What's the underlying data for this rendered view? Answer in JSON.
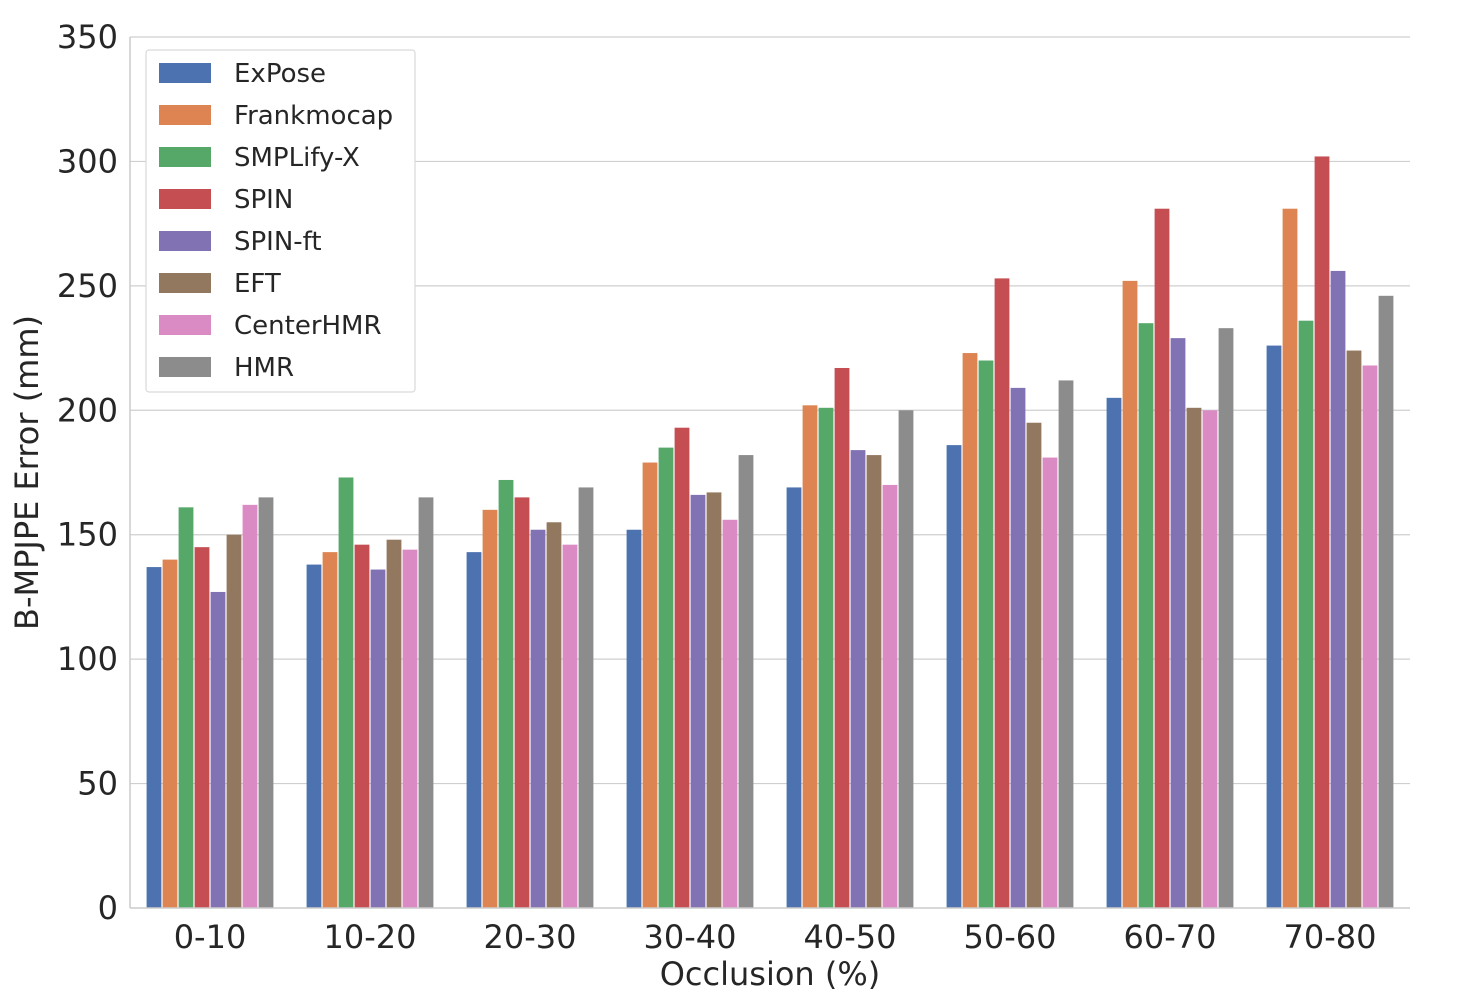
{
  "chart_data": {
    "type": "bar",
    "title": "",
    "xlabel": "Occlusion (%)",
    "ylabel": "B-MPJPE Error (mm)",
    "ylim": [
      0,
      350
    ],
    "yticks": [
      0,
      50,
      100,
      150,
      200,
      250,
      300,
      350
    ],
    "grid": true,
    "legend_position": "top-left",
    "categories": [
      "0-10",
      "10-20",
      "20-30",
      "30-40",
      "40-50",
      "50-60",
      "60-70",
      "70-80"
    ],
    "series": [
      {
        "name": "ExPose",
        "color": "#4c72b0",
        "values": [
          137,
          138,
          143,
          152,
          169,
          186,
          205,
          226
        ]
      },
      {
        "name": "Frankmocap",
        "color": "#dd8452",
        "values": [
          140,
          143,
          160,
          179,
          202,
          223,
          252,
          281
        ]
      },
      {
        "name": "SMPLify-X",
        "color": "#55a868",
        "values": [
          161,
          173,
          172,
          185,
          201,
          220,
          235,
          236
        ]
      },
      {
        "name": "SPIN",
        "color": "#c44e52",
        "values": [
          145,
          146,
          165,
          193,
          217,
          253,
          281,
          302
        ]
      },
      {
        "name": "SPIN-ft",
        "color": "#8172b3",
        "values": [
          127,
          136,
          152,
          166,
          184,
          209,
          229,
          256
        ]
      },
      {
        "name": "EFT",
        "color": "#937860",
        "values": [
          150,
          148,
          155,
          167,
          182,
          195,
          201,
          224
        ]
      },
      {
        "name": "CenterHMR",
        "color": "#da8bc3",
        "values": [
          162,
          144,
          146,
          156,
          170,
          181,
          200,
          218
        ]
      },
      {
        "name": "HMR",
        "color": "#8c8c8c",
        "values": [
          165,
          165,
          169,
          182,
          200,
          212,
          233,
          246
        ]
      }
    ]
  }
}
